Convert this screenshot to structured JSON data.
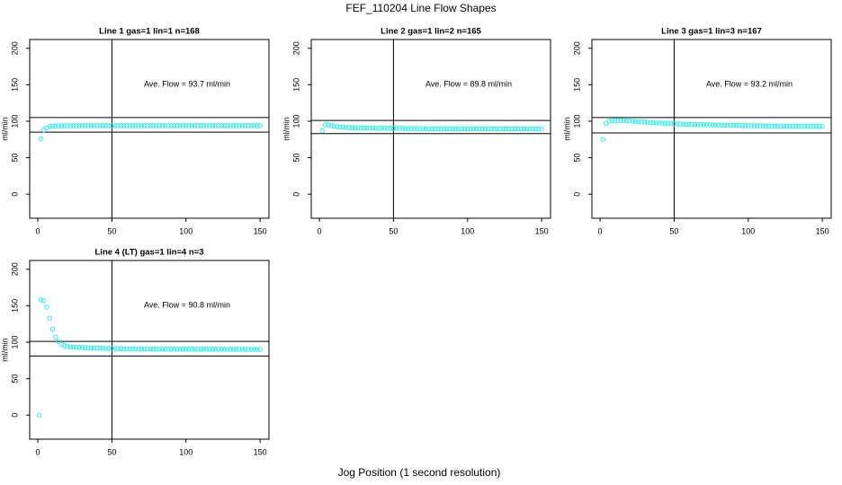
{
  "title": "FEF_110204  Line Flow Shapes",
  "xlabel": "Jog Position (1 second resolution)",
  "chart_data": [
    {
      "type": "scatter",
      "title": "Line 1 gas=1 lin=1 n=168",
      "ylabel": "ml/min",
      "annotation": "Ave. Flow =  93.7  ml/min",
      "color": "#33eeee",
      "xlim": [
        -5.5,
        156
      ],
      "ylim": [
        -33,
        212
      ],
      "xticks": [
        0,
        50,
        100,
        150
      ],
      "yticks": [
        0,
        50,
        100,
        150,
        200
      ],
      "hlines": [
        105,
        85
      ],
      "vline": 50,
      "x": [
        2,
        4,
        6,
        8,
        10,
        12,
        14,
        16,
        18,
        20,
        22,
        24,
        26,
        28,
        30,
        32,
        34,
        36,
        38,
        40,
        42,
        44,
        46,
        48,
        50,
        52,
        54,
        56,
        58,
        60,
        62,
        64,
        66,
        68,
        70,
        72,
        74,
        76,
        78,
        80,
        82,
        84,
        86,
        88,
        90,
        92,
        94,
        96,
        98,
        100,
        102,
        104,
        106,
        108,
        110,
        112,
        114,
        116,
        118,
        120,
        122,
        124,
        126,
        128,
        130,
        132,
        134,
        136,
        138,
        140,
        142,
        144,
        146,
        148,
        150
      ],
      "values": [
        76,
        88,
        91,
        93,
        93.5,
        93.6,
        93.7,
        93.7,
        93.8,
        93.8,
        93.8,
        93.9,
        93.9,
        93.8,
        93.9,
        94,
        93.9,
        93.9,
        94,
        93.9,
        93.9,
        94,
        94,
        93.9,
        94,
        93.9,
        94,
        94,
        93.9,
        94,
        94,
        93.9,
        94,
        94,
        94,
        93.9,
        94,
        94,
        93.9,
        94,
        94,
        94,
        93.9,
        94,
        94,
        94,
        93.9,
        94,
        94,
        94,
        94,
        93.9,
        94,
        94,
        94,
        94,
        93.9,
        94,
        94,
        94,
        94,
        94,
        93.9,
        94,
        94,
        94,
        94,
        93.9,
        94,
        94,
        94,
        94,
        93.9,
        94,
        94
      ]
    },
    {
      "type": "scatter",
      "title": "Line 2 gas=1 lin=2 n=165",
      "ylabel": "ml/min",
      "annotation": "Ave. Flow =  89.8  ml/min",
      "color": "#33eeee",
      "xlim": [
        -5.5,
        156
      ],
      "ylim": [
        -33,
        212
      ],
      "xticks": [
        0,
        50,
        100,
        150
      ],
      "yticks": [
        0,
        50,
        100,
        150,
        200
      ],
      "hlines": [
        101,
        83
      ],
      "vline": 50,
      "x": [
        2,
        4,
        6,
        8,
        10,
        12,
        14,
        16,
        18,
        20,
        22,
        24,
        26,
        28,
        30,
        32,
        34,
        36,
        38,
        40,
        42,
        44,
        46,
        48,
        50,
        52,
        54,
        56,
        58,
        60,
        62,
        64,
        66,
        68,
        70,
        72,
        74,
        76,
        78,
        80,
        82,
        84,
        86,
        88,
        90,
        92,
        94,
        96,
        98,
        100,
        102,
        104,
        106,
        108,
        110,
        112,
        114,
        116,
        118,
        120,
        122,
        124,
        126,
        128,
        130,
        132,
        134,
        136,
        138,
        140,
        142,
        144,
        146,
        148,
        150
      ],
      "values": [
        87,
        95,
        95,
        94,
        93,
        92.5,
        92,
        91.8,
        91.5,
        91.3,
        91.2,
        91,
        91,
        90.9,
        90.8,
        90.7,
        90.7,
        90.6,
        90.6,
        90.5,
        90.5,
        90.4,
        90.4,
        90.3,
        90.3,
        90.2,
        90.2,
        90.2,
        90.1,
        90.1,
        90,
        90,
        90,
        89.9,
        89.9,
        89.9,
        89.8,
        89.8,
        89.8,
        89.8,
        89.7,
        89.7,
        89.7,
        89.7,
        89.7,
        89.7,
        89.7,
        89.7,
        89.7,
        89.7,
        89.6,
        89.6,
        89.6,
        89.6,
        89.6,
        89.6,
        89.6,
        89.6,
        89.6,
        89.6,
        89.5,
        89.5,
        89.5,
        89.5,
        89.5,
        89.5,
        89.5,
        89.5,
        89.5,
        89.5,
        89.5,
        89.4,
        89.4,
        89.4,
        89.4
      ]
    },
    {
      "type": "scatter",
      "title": "Line 3 gas=1 lin=3 n=167",
      "ylabel": "ml/min",
      "annotation": "Ave. Flow =  93.2  ml/min",
      "color": "#33eeee",
      "xlim": [
        -5.5,
        156
      ],
      "ylim": [
        -33,
        212
      ],
      "xticks": [
        0,
        50,
        100,
        150
      ],
      "yticks": [
        0,
        50,
        100,
        150,
        200
      ],
      "hlines": [
        105,
        84
      ],
      "vline": 50,
      "x": [
        2,
        4,
        6,
        8,
        10,
        12,
        14,
        16,
        18,
        20,
        22,
        24,
        26,
        28,
        30,
        32,
        34,
        36,
        38,
        40,
        42,
        44,
        46,
        48,
        50,
        52,
        54,
        56,
        58,
        60,
        62,
        64,
        66,
        68,
        70,
        72,
        74,
        76,
        78,
        80,
        82,
        84,
        86,
        88,
        90,
        92,
        94,
        96,
        98,
        100,
        102,
        104,
        106,
        108,
        110,
        112,
        114,
        116,
        118,
        120,
        122,
        124,
        126,
        128,
        130,
        132,
        134,
        136,
        138,
        140,
        142,
        144,
        146,
        148,
        150
      ],
      "values": [
        75,
        97,
        100,
        101,
        101,
        101,
        101,
        101,
        100.5,
        100.3,
        100,
        99.7,
        99.4,
        99.1,
        98.8,
        98.5,
        98.2,
        98,
        97.8,
        97.6,
        97.4,
        97.2,
        97,
        96.8,
        96.6,
        96.4,
        96.2,
        96,
        95.9,
        95.8,
        95.7,
        95.6,
        95.5,
        95.4,
        95.3,
        95.2,
        95.1,
        95,
        94.9,
        94.8,
        94.7,
        94.6,
        94.5,
        94.4,
        94.3,
        94.2,
        94.1,
        94,
        94,
        93.9,
        93.8,
        93.8,
        93.7,
        93.7,
        93.6,
        93.6,
        93.5,
        93.5,
        93.4,
        93.4,
        93.3,
        93.3,
        93.3,
        93.2,
        93.2,
        93.2,
        93.1,
        93.1,
        93.1,
        93,
        93,
        93,
        93,
        92.9,
        92.9
      ]
    },
    {
      "type": "scatter",
      "title": "Line 4 (LT) gas=1 lin=4 n=3",
      "ylabel": "ml/min",
      "annotation": "Ave. Flow =  90.8  ml/min",
      "color": "#33eeee",
      "xlim": [
        -5.5,
        156
      ],
      "ylim": [
        -33,
        212
      ],
      "xticks": [
        0,
        50,
        100,
        150
      ],
      "yticks": [
        0,
        50,
        100,
        150,
        200
      ],
      "hlines": [
        101,
        81
      ],
      "vline": 50,
      "x": [
        1,
        2,
        4,
        6,
        8,
        10,
        12,
        14,
        16,
        18,
        20,
        22,
        24,
        26,
        28,
        30,
        32,
        34,
        36,
        38,
        40,
        42,
        44,
        46,
        48,
        50,
        52,
        54,
        56,
        58,
        60,
        62,
        64,
        66,
        68,
        70,
        72,
        74,
        76,
        78,
        80,
        82,
        84,
        86,
        88,
        90,
        92,
        94,
        96,
        98,
        100,
        102,
        104,
        106,
        108,
        110,
        112,
        114,
        116,
        118,
        120,
        122,
        124,
        126,
        128,
        130,
        132,
        134,
        136,
        138,
        140,
        142,
        144,
        146,
        148,
        150
      ],
      "values": [
        0,
        158,
        157,
        148,
        133,
        118,
        107,
        101,
        97,
        95,
        94,
        93.5,
        93.2,
        93,
        92.8,
        92.6,
        92.4,
        92.2,
        92,
        91.9,
        91.8,
        91.7,
        91.6,
        91.5,
        91.4,
        91.3,
        91.2,
        91.1,
        91,
        91,
        90.9,
        90.9,
        90.8,
        90.8,
        90.7,
        90.7,
        90.6,
        90.6,
        90.5,
        90.5,
        90.5,
        90.4,
        90.4,
        90.4,
        90.4,
        90.4,
        90.4,
        90.4,
        90.4,
        90.4,
        90.4,
        90.3,
        90.3,
        90.3,
        90.3,
        90.3,
        90.3,
        90.3,
        90.3,
        90.3,
        90.3,
        90.2,
        90.2,
        90.2,
        90.2,
        90.2,
        90.2,
        90.2,
        90.2,
        90.2,
        90.2,
        90.1,
        90.1,
        90.1,
        90.1,
        90.1
      ]
    }
  ]
}
